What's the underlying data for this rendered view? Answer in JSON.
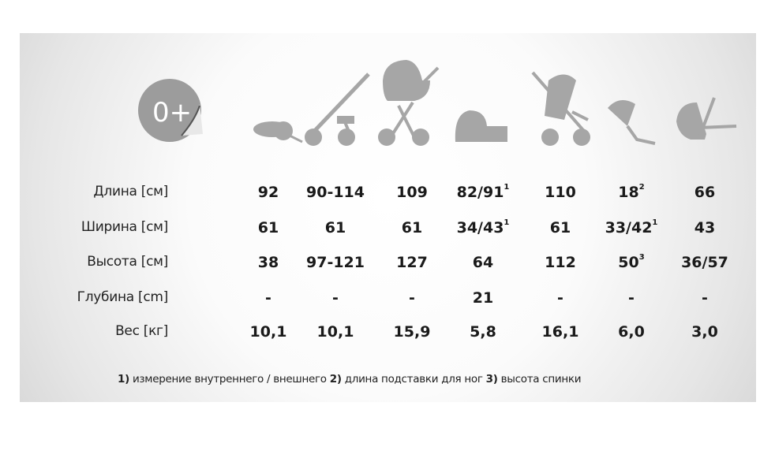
{
  "badge": {
    "text": "0+"
  },
  "icons": [
    "car-seat-icon",
    "stroller-frame-icon",
    "stroller-with-carrycot-icon",
    "carrycot-icon",
    "stroller-seat-unit-icon",
    "seat-unit-icon",
    "carrycot-seat-icon"
  ],
  "colors": {
    "icon": "#a6a6a6",
    "text": "#1a1a1a"
  },
  "table": {
    "rows": [
      {
        "label": "Длина [см]",
        "cells": [
          {
            "v": "92"
          },
          {
            "v": "90-114"
          },
          {
            "v": "109"
          },
          {
            "v": "82/91",
            "sup": "1"
          },
          {
            "v": "110"
          },
          {
            "v": "18",
            "sup": "2"
          },
          {
            "v": "66"
          }
        ]
      },
      {
        "label": "Ширина [см]",
        "cells": [
          {
            "v": "61"
          },
          {
            "v": "61"
          },
          {
            "v": "61"
          },
          {
            "v": "34/43",
            "sup": "1"
          },
          {
            "v": "61"
          },
          {
            "v": "33/42",
            "sup": "1"
          },
          {
            "v": "43"
          }
        ]
      },
      {
        "label": "Высота [см]",
        "cells": [
          {
            "v": "38"
          },
          {
            "v": "97-121"
          },
          {
            "v": "127"
          },
          {
            "v": "64"
          },
          {
            "v": "112"
          },
          {
            "v": "50",
            "sup": "3"
          },
          {
            "v": "36/57"
          }
        ]
      },
      {
        "label": "Глубина [cm]",
        "cells": [
          {
            "v": "-"
          },
          {
            "v": "-"
          },
          {
            "v": "-"
          },
          {
            "v": "21"
          },
          {
            "v": "-"
          },
          {
            "v": "-"
          },
          {
            "v": "-"
          }
        ]
      },
      {
        "label": "Вес [кг]",
        "cells": [
          {
            "v": "10,1"
          },
          {
            "v": "10,1"
          },
          {
            "v": "15,9"
          },
          {
            "v": "5,8"
          },
          {
            "v": "16,1"
          },
          {
            "v": "6,0"
          },
          {
            "v": "3,0"
          }
        ]
      }
    ]
  },
  "footnotes": [
    {
      "mark": "1)",
      "text": " измерение внутреннего / внешнего "
    },
    {
      "mark": "2)",
      "text": " длина подставки для ног "
    },
    {
      "mark": "3)",
      "text": " высота спинки"
    }
  ]
}
